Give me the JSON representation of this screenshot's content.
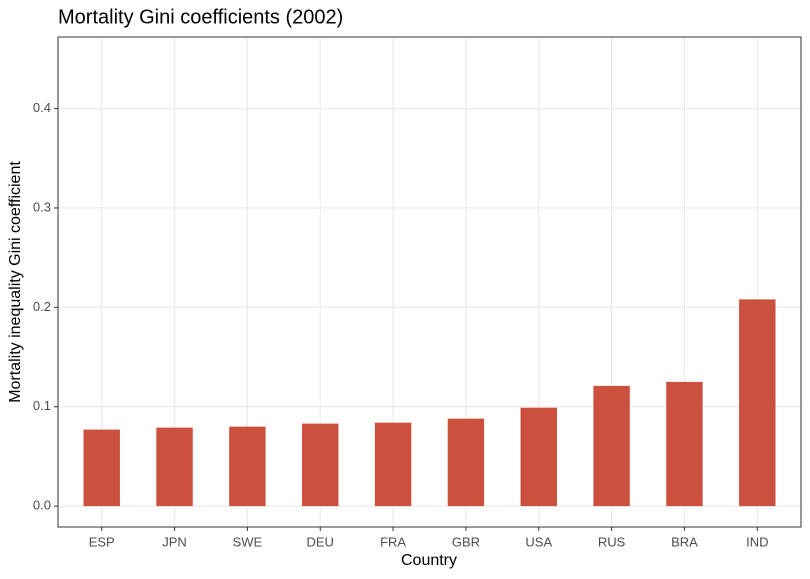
{
  "chart_data": {
    "type": "bar",
    "title": "Mortality Gini coefficients (2002)",
    "x_label": "Country",
    "y_label": "Mortality inequality Gini coefficient",
    "categories": [
      "ESP",
      "JPN",
      "SWE",
      "DEU",
      "FRA",
      "GBR",
      "USA",
      "RUS",
      "BRA",
      "IND"
    ],
    "values": [
      0.077,
      0.079,
      0.08,
      0.083,
      0.084,
      0.088,
      0.099,
      0.121,
      0.125,
      0.208
    ],
    "color": "#cc503e",
    "ylim": [
      -0.021,
      0.472
    ],
    "yticks": [
      {
        "value": 0,
        "label": "0.0"
      },
      0.1,
      0.2,
      0.3,
      0.4
    ],
    "grid": true
  }
}
